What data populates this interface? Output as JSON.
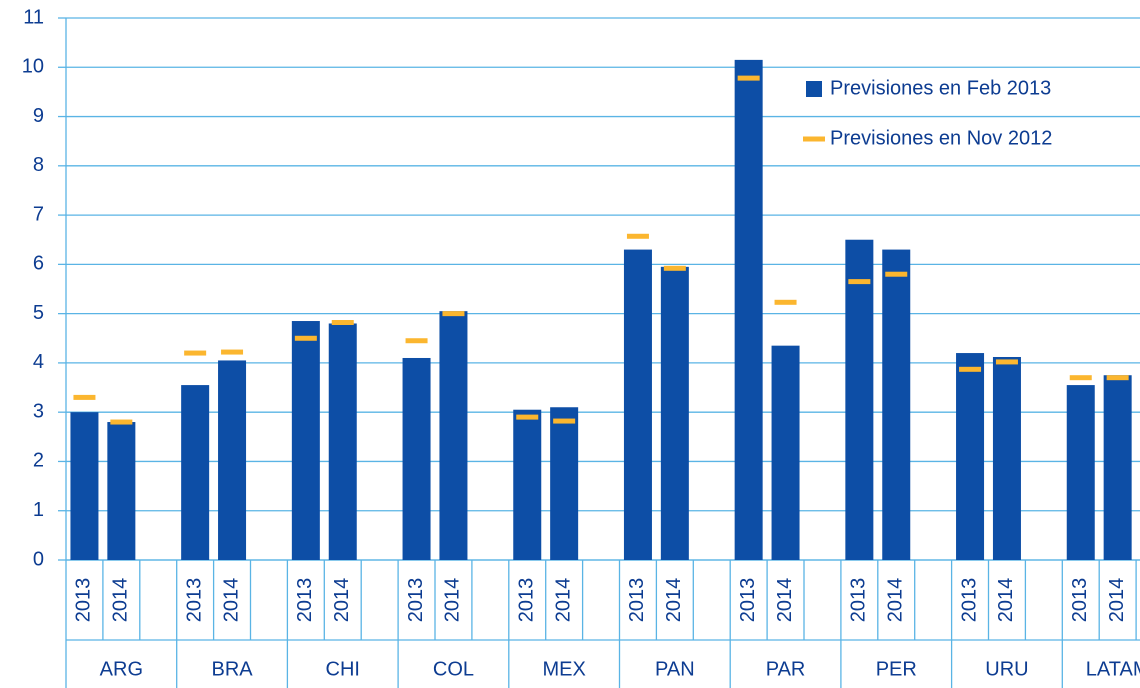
{
  "chart_data": {
    "type": "bar",
    "groups": [
      "ARG",
      "BRA",
      "CHI",
      "COL",
      "MEX",
      "PAN",
      "PAR",
      "PER",
      "URU",
      "LATAM"
    ],
    "subcategories": [
      "2013",
      "2014"
    ],
    "series": [
      {
        "name": "Previsiones en Feb 2013",
        "color": "#0d4ea6",
        "marker": "bar",
        "values": [
          3.0,
          2.8,
          3.55,
          4.05,
          4.85,
          4.8,
          4.1,
          5.05,
          3.05,
          3.1,
          6.3,
          5.95,
          10.15,
          4.35,
          6.5,
          6.3,
          4.2,
          4.12,
          3.55,
          3.75
        ]
      },
      {
        "name": "Previsiones en Nov 2012",
        "color": "#fbb62f",
        "marker": "dash",
        "values": [
          3.3,
          2.8,
          4.2,
          4.22,
          4.5,
          4.82,
          4.45,
          5.0,
          2.9,
          2.82,
          6.57,
          5.92,
          9.78,
          5.23,
          5.65,
          5.8,
          3.87,
          4.02,
          3.7,
          3.7
        ]
      }
    ],
    "ylim": [
      0,
      11
    ],
    "yticks": [
      0,
      1,
      2,
      3,
      4,
      5,
      6,
      7,
      8,
      9,
      10,
      11
    ],
    "grid": true
  }
}
